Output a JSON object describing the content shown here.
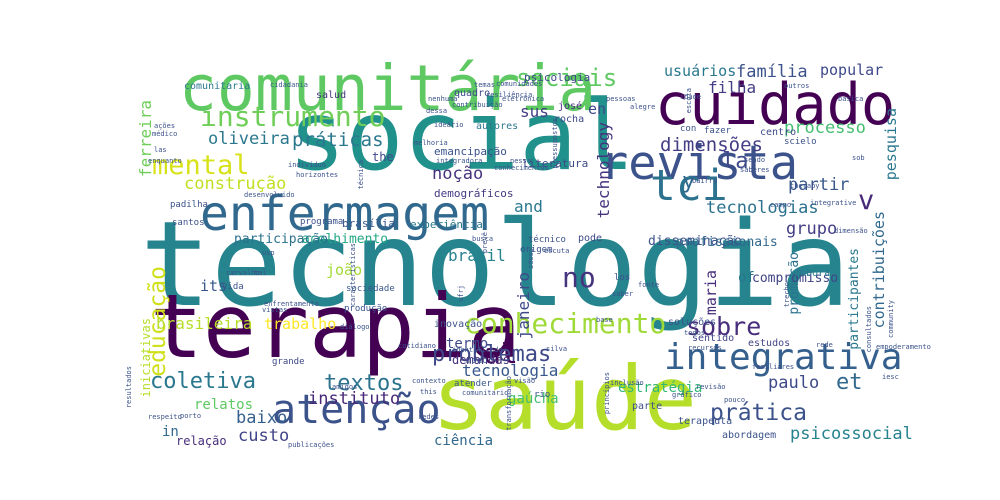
{
  "colors": {
    "background": "#ffffff"
  },
  "words": [
    {
      "t": "tecnologia",
      "c": "#25848e"
    },
    {
      "t": "social",
      "c": "#21918c"
    },
    {
      "t": "saúde",
      "c": "#b5de2b"
    },
    {
      "t": "terapia",
      "c": "#440154"
    },
    {
      "t": "comunitária",
      "c": "#5ec962"
    },
    {
      "t": "cuidado",
      "c": "#440154"
    },
    {
      "t": "enfermagem",
      "c": "#31688e"
    },
    {
      "t": "revista",
      "c": "#3b528b"
    },
    {
      "t": "tci",
      "c": "#2c728e"
    },
    {
      "t": "atenção",
      "c": "#3b528b"
    },
    {
      "t": "integrativa",
      "c": "#355f8d"
    },
    {
      "t": "conhecimento",
      "c": "#a0da39"
    },
    {
      "t": "mental",
      "c": "#d8e219"
    },
    {
      "t": "instrumento",
      "c": "#6ece58"
    },
    {
      "t": "al",
      "c": "#440154"
    },
    {
      "t": "v",
      "c": "#482878"
    },
    {
      "t": "y",
      "c": "#31688e"
    },
    {
      "t": "la",
      "c": "#3e4989"
    },
    {
      "t": "sociais",
      "c": "#5ec962"
    },
    {
      "t": "educação",
      "c": "#d0e11c"
    },
    {
      "t": "sobre",
      "c": "#472d7b"
    },
    {
      "t": "problemas",
      "c": "#3e4989"
    },
    {
      "t": "prática",
      "c": "#3b528b"
    },
    {
      "t": "et",
      "c": "#31688e"
    },
    {
      "t": "coletiva",
      "c": "#2a788e"
    },
    {
      "t": "textos",
      "c": "#2c728e"
    },
    {
      "t": "no",
      "c": "#46337e"
    },
    {
      "t": "práticas",
      "c": "#2a788e"
    },
    {
      "t": "dimensões",
      "c": "#433e85"
    },
    {
      "t": "construção",
      "c": "#c2df23"
    },
    {
      "t": "oliveira",
      "c": "#2a788e"
    },
    {
      "t": "noção",
      "c": "#46337e"
    },
    {
      "t": "família",
      "c": "#3b528b"
    },
    {
      "t": "usuários",
      "c": "#2a788e"
    },
    {
      "t": "popular",
      "c": "#3e4989"
    },
    {
      "t": "filha",
      "c": "#433e85"
    },
    {
      "t": "processo",
      "c": "#44bf70"
    },
    {
      "t": "partir",
      "c": "#38588c"
    },
    {
      "t": "tecnologias",
      "c": "#2c728e"
    },
    {
      "t": "grupo",
      "c": "#433e85"
    },
    {
      "t": "contribuições",
      "c": "#31688e"
    },
    {
      "t": "pesquisa",
      "c": "#2a788e"
    },
    {
      "t": "brasileira",
      "c": "#b5de2b"
    },
    {
      "t": "trabalho",
      "c": "#fde725"
    },
    {
      "t": "instituto",
      "c": "#482878"
    },
    {
      "t": "baixo",
      "c": "#355f8d"
    },
    {
      "t": "custo",
      "c": "#414487"
    },
    {
      "t": "psicossocial",
      "c": "#26828e"
    },
    {
      "t": "paulo",
      "c": "#3e4989"
    },
    {
      "t": "tecnologia",
      "c": "#38588c"
    },
    {
      "t": "janeiro",
      "c": "#3e4989"
    },
    {
      "t": "brasil",
      "c": "#26828e"
    },
    {
      "t": "and",
      "c": "#2a788e"
    },
    {
      "t": "sus",
      "c": "#433e85"
    },
    {
      "t": "en",
      "c": "#3e4989"
    },
    {
      "t": "technology",
      "c": "#46337e"
    },
    {
      "t": "ferreira",
      "c": "#6ece58"
    },
    {
      "t": "its",
      "c": "#38588c"
    },
    {
      "t": "joão",
      "c": "#a5db36"
    },
    {
      "t": "acolhimento",
      "c": "#22a884"
    },
    {
      "t": "participação",
      "c": "#2c728e"
    },
    {
      "t": "maria",
      "c": "#472d7b"
    },
    {
      "t": "promoção",
      "c": "#2c728e"
    },
    {
      "t": "of",
      "c": "#2a788e"
    },
    {
      "t": "participantes",
      "c": "#2a788e"
    },
    {
      "t": "relatos",
      "c": "#5ec962"
    },
    {
      "t": "iniciativas",
      "c": "#b5de2b"
    },
    {
      "t": "in",
      "c": "#31688e"
    },
    {
      "t": "relação",
      "c": "#472d7b"
    },
    {
      "t": "ciência",
      "c": "#31688e"
    },
    {
      "t": "gaúcha",
      "c": "#44bf70"
    },
    {
      "t": "estratégia",
      "c": "#35b779"
    },
    {
      "t": "termo",
      "c": "#3e4989"
    },
    {
      "t": "demandas",
      "c": "#46337e"
    },
    {
      "t": "disseminação",
      "c": "#3b528b"
    },
    {
      "t": "profissionais",
      "c": "#31688e"
    },
    {
      "t": "compromisso",
      "c": "#414487"
    },
    {
      "t": "demográficos",
      "c": "#443983"
    },
    {
      "t": "experiência",
      "c": "#2a788e"
    },
    {
      "t": "brasília",
      "c": "#38588c"
    },
    {
      "t": "literatura",
      "c": "#3e4989"
    },
    {
      "t": "emancipação",
      "c": "#3b528b"
    },
    {
      "t": "psicologia",
      "c": "#3e4989"
    },
    {
      "t": "salud",
      "c": "#46337e"
    },
    {
      "t": "comunitaria",
      "c": "#2a788e"
    },
    {
      "t": "cidadania",
      "c": "#38588c"
    },
    {
      "t": "quadro",
      "c": "#3e4989"
    },
    {
      "t": "autores",
      "c": "#2a788e"
    },
    {
      "t": "josé",
      "c": "#472d7b"
    },
    {
      "t": "rocha",
      "c": "#3e4989"
    },
    {
      "t": "the",
      "c": "#3e4989"
    },
    {
      "t": "pode",
      "c": "#3e4989"
    },
    {
      "t": "centro",
      "c": "#3e4989"
    },
    {
      "t": "embora",
      "c": "#2a788e"
    },
    {
      "t": "estudos",
      "c": "#414487"
    },
    {
      "t": "sentido",
      "c": "#414487"
    },
    {
      "t": "soluções",
      "c": "#3b528b"
    },
    {
      "t": "parte",
      "c": "#3b528b"
    },
    {
      "t": "terapeuta",
      "c": "#3b528b"
    },
    {
      "t": "abordagem",
      "c": "#3b528b"
    },
    {
      "t": "inovação",
      "c": "#3b528b"
    },
    {
      "t": "modo",
      "c": "#3b528b"
    },
    {
      "t": "atender",
      "c": "#38588c"
    },
    {
      "t": "rio",
      "c": "#3b528b"
    },
    {
      "t": "grande",
      "c": "#3e4989"
    },
    {
      "t": "programa",
      "c": "#3b528b"
    },
    {
      "t": "santos",
      "c": "#3b528b"
    },
    {
      "t": "padilha",
      "c": "#3b528b"
    },
    {
      "t": "vida",
      "c": "#3b528b"
    },
    {
      "t": "sociedade",
      "c": "#38588c"
    },
    {
      "t": "produção",
      "c": "#3b528b"
    },
    {
      "t": "origem",
      "c": "#3b528b"
    },
    {
      "t": "técnico",
      "c": "#3b528b"
    },
    {
      "t": "los",
      "c": "#3b528b"
    },
    {
      "t": "con",
      "c": "#3b528b"
    },
    {
      "t": "fazer",
      "c": "#3b528b"
    },
    {
      "t": "scielo",
      "c": "#3b528b"
    },
    {
      "t": "idade",
      "c": "#3b528b"
    },
    {
      "t": "pessoas",
      "c": "#3b528b"
    },
    {
      "t": "outros",
      "c": "#3b528b"
    },
    {
      "t": "básica",
      "c": "#3b528b"
    },
    {
      "t": "sob",
      "c": "#3b528b"
    },
    {
      "t": "therapy",
      "c": "#3b528b"
    },
    {
      "t": "integrative",
      "c": "#3b528b"
    },
    {
      "t": "saberes",
      "c": "#3b528b"
    },
    {
      "t": "sendo",
      "c": "#3b528b"
    },
    {
      "t": "indivíduo",
      "c": "#3b528b"
    },
    {
      "t": "horizontes",
      "c": "#3b528b"
    },
    {
      "t": "tal",
      "c": "#3b528b"
    },
    {
      "t": "médico",
      "c": "#3b528b"
    },
    {
      "t": "ações",
      "c": "#3b528b"
    },
    {
      "t": "enquanto",
      "c": "#3b528b"
    },
    {
      "t": "las",
      "c": "#3b528b"
    },
    {
      "t": "respeito",
      "c": "#3b528b"
    },
    {
      "t": "porto",
      "c": "#3b528b"
    },
    {
      "t": "resultados",
      "c": "#3b528b"
    },
    {
      "t": "amigos",
      "c": "#3b528b"
    },
    {
      "t": "contexto",
      "c": "#3b528b"
    },
    {
      "t": "this",
      "c": "#3b528b"
    },
    {
      "t": "redes",
      "c": "#3b528b"
    },
    {
      "t": "publicações",
      "c": "#3b528b"
    },
    {
      "t": "comunitario",
      "c": "#3b528b"
    },
    {
      "t": "transformação",
      "c": "#3b528b"
    },
    {
      "t": "princípios",
      "c": "#3b528b"
    },
    {
      "t": "inclusão",
      "c": "#3b528b"
    },
    {
      "t": "revisão",
      "c": "#3b528b"
    },
    {
      "t": "gráfico",
      "c": "#3b528b"
    },
    {
      "t": "pouco",
      "c": "#3b528b"
    },
    {
      "t": "familiares",
      "c": "#3b528b"
    },
    {
      "t": "rede",
      "c": "#3b528b"
    },
    {
      "t": "empoderamento",
      "c": "#3b528b"
    },
    {
      "t": "community",
      "c": "#3b528b"
    },
    {
      "t": "recursos",
      "c": "#3b528b"
    },
    {
      "t": "todos",
      "c": "#3b528b"
    },
    {
      "t": "base",
      "c": "#3b528b"
    },
    {
      "t": "saber",
      "c": "#3b528b"
    },
    {
      "t": "fonte",
      "c": "#3b528b"
    },
    {
      "t": "consultados",
      "c": "#3b528b"
    },
    {
      "t": "dimensão",
      "c": "#3b528b"
    },
    {
      "t": "escuta",
      "c": "#3b528b"
    },
    {
      "t": "prevê",
      "c": "#3b528b"
    },
    {
      "t": "ideário",
      "c": "#3b528b"
    },
    {
      "t": "integradora",
      "c": "#3b528b"
    },
    {
      "t": "técnica",
      "c": "#3b528b"
    },
    {
      "t": "desenvolvido",
      "c": "#3b528b"
    },
    {
      "t": "carvalho",
      "c": "#3b528b"
    },
    {
      "t": "vistas",
      "c": "#3b528b"
    },
    {
      "t": "enfrentamento",
      "c": "#3b528b"
    },
    {
      "t": "características",
      "c": "#3b528b"
    },
    {
      "t": "idoso",
      "c": "#3b528b"
    },
    {
      "t": "ufrj",
      "c": "#3b528b"
    },
    {
      "t": "usp",
      "c": "#3b528b"
    },
    {
      "t": "busca",
      "c": "#3b528b"
    },
    {
      "t": "diálogo",
      "c": "#3b528b"
    },
    {
      "t": "cotidiano",
      "c": "#3b528b"
    },
    {
      "t": "identificada",
      "c": "#3b528b"
    },
    {
      "t": "silva",
      "c": "#3b528b"
    },
    {
      "t": "visão",
      "c": "#3b528b"
    },
    {
      "t": "iesc",
      "c": "#3b528b"
    },
    {
      "t": "alegre",
      "c": "#3b528b"
    },
    {
      "t": "eletrônica",
      "c": "#3b528b"
    },
    {
      "t": "resiliência",
      "c": "#3b528b"
    },
    {
      "t": "dessa",
      "c": "#3b528b"
    },
    {
      "t": "nenhuma",
      "c": "#3b528b"
    },
    {
      "t": "comunidades",
      "c": "#3b528b"
    },
    {
      "t": "temas",
      "c": "#3b528b"
    },
    {
      "t": "melhoria",
      "c": "#3b528b"
    },
    {
      "t": "contribuição",
      "c": "#3b528b"
    },
    {
      "t": "conhecimentos",
      "c": "#3b528b"
    },
    {
      "t": "pressupostos",
      "c": "#3b528b"
    },
    {
      "t": "escola",
      "c": "#3b528b"
    },
    {
      "t": "campo",
      "c": "#3b528b"
    },
    {
      "t": "bairro",
      "c": "#3b528b"
    },
    {
      "t": "trecho",
      "c": "#3b528b"
    },
    {
      "t": "nessa",
      "c": "#3b528b"
    }
  ]
}
